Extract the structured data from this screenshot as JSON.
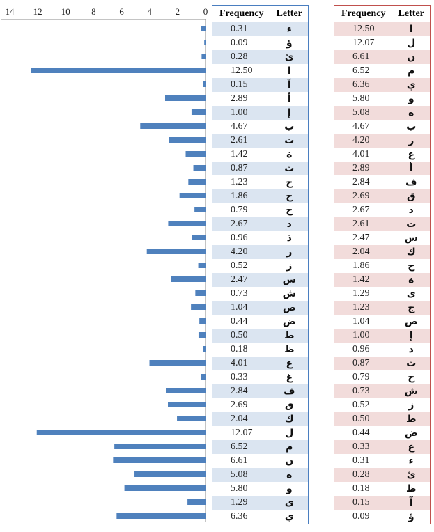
{
  "colors": {
    "bar": "#4f81bd",
    "left_table_border": "#4a7ec0",
    "left_table_alt": "#dbe5f1",
    "right_table_border": "#c0504d",
    "right_table_alt": "#f2dcdb"
  },
  "chart_data": {
    "type": "bar",
    "orientation": "horizontal",
    "x_axis_reversed": true,
    "xlim": [
      0,
      14
    ],
    "x_ticks": [
      "14",
      "12",
      "10",
      "8",
      "6",
      "4",
      "2",
      "0"
    ],
    "grid": false,
    "categories": [
      "ء",
      "ؤ",
      "ئ",
      "ا",
      "آ",
      "أ",
      "إ",
      "ب",
      "ت",
      "ة",
      "ث",
      "ج",
      "ح",
      "خ",
      "د",
      "ذ",
      "ر",
      "ز",
      "س",
      "ش",
      "ص",
      "ض",
      "ط",
      "ظ",
      "ع",
      "غ",
      "ف",
      "ق",
      "ك",
      "ل",
      "م",
      "ن",
      "ه",
      "و",
      "ى",
      "ي"
    ],
    "values": [
      0.31,
      0.09,
      0.28,
      12.5,
      0.15,
      2.89,
      1.0,
      4.67,
      2.61,
      1.42,
      0.87,
      1.23,
      1.86,
      0.79,
      2.67,
      0.96,
      4.2,
      0.52,
      2.47,
      0.73,
      1.04,
      0.44,
      0.5,
      0.18,
      4.01,
      0.33,
      2.84,
      2.69,
      2.04,
      12.07,
      6.52,
      6.61,
      5.08,
      5.8,
      1.29,
      6.36
    ]
  },
  "left_table": {
    "header_frequency": "Frequency",
    "header_letter": "Letter",
    "rows": [
      {
        "freq": "0.31",
        "letter": "ء"
      },
      {
        "freq": "0.09",
        "letter": "ؤ"
      },
      {
        "freq": "0.28",
        "letter": "ئ"
      },
      {
        "freq": "12.50",
        "letter": "ا"
      },
      {
        "freq": "0.15",
        "letter": "آ"
      },
      {
        "freq": "2.89",
        "letter": "أ"
      },
      {
        "freq": "1.00",
        "letter": "إ"
      },
      {
        "freq": "4.67",
        "letter": "ب"
      },
      {
        "freq": "2.61",
        "letter": "ت"
      },
      {
        "freq": "1.42",
        "letter": "ة"
      },
      {
        "freq": "0.87",
        "letter": "ث"
      },
      {
        "freq": "1.23",
        "letter": "ج"
      },
      {
        "freq": "1.86",
        "letter": "ح"
      },
      {
        "freq": "0.79",
        "letter": "خ"
      },
      {
        "freq": "2.67",
        "letter": "د"
      },
      {
        "freq": "0.96",
        "letter": "ذ"
      },
      {
        "freq": "4.20",
        "letter": "ر"
      },
      {
        "freq": "0.52",
        "letter": "ز"
      },
      {
        "freq": "2.47",
        "letter": "س"
      },
      {
        "freq": "0.73",
        "letter": "ش"
      },
      {
        "freq": "1.04",
        "letter": "ص"
      },
      {
        "freq": "0.44",
        "letter": "ض"
      },
      {
        "freq": "0.50",
        "letter": "ط"
      },
      {
        "freq": "0.18",
        "letter": "ظ"
      },
      {
        "freq": "4.01",
        "letter": "ع"
      },
      {
        "freq": "0.33",
        "letter": "غ"
      },
      {
        "freq": "2.84",
        "letter": "ف"
      },
      {
        "freq": "2.69",
        "letter": "ق"
      },
      {
        "freq": "2.04",
        "letter": "ك"
      },
      {
        "freq": "12.07",
        "letter": "ل"
      },
      {
        "freq": "6.52",
        "letter": "م"
      },
      {
        "freq": "6.61",
        "letter": "ن"
      },
      {
        "freq": "5.08",
        "letter": "ه"
      },
      {
        "freq": "5.80",
        "letter": "و"
      },
      {
        "freq": "1.29",
        "letter": "ى"
      },
      {
        "freq": "6.36",
        "letter": "ي"
      }
    ]
  },
  "right_table": {
    "header_frequency": "Frequency",
    "header_letter": "Letter",
    "rows": [
      {
        "freq": "12.50",
        "letter": "ا"
      },
      {
        "freq": "12.07",
        "letter": "ل"
      },
      {
        "freq": "6.61",
        "letter": "ن"
      },
      {
        "freq": "6.52",
        "letter": "م"
      },
      {
        "freq": "6.36",
        "letter": "ي"
      },
      {
        "freq": "5.80",
        "letter": "و"
      },
      {
        "freq": "5.08",
        "letter": "ه"
      },
      {
        "freq": "4.67",
        "letter": "ب"
      },
      {
        "freq": "4.20",
        "letter": "ر"
      },
      {
        "freq": "4.01",
        "letter": "ع"
      },
      {
        "freq": "2.89",
        "letter": "أ"
      },
      {
        "freq": "2.84",
        "letter": "ف"
      },
      {
        "freq": "2.69",
        "letter": "ق"
      },
      {
        "freq": "2.67",
        "letter": "د"
      },
      {
        "freq": "2.61",
        "letter": "ت"
      },
      {
        "freq": "2.47",
        "letter": "س"
      },
      {
        "freq": "2.04",
        "letter": "ك"
      },
      {
        "freq": "1.86",
        "letter": "ح"
      },
      {
        "freq": "1.42",
        "letter": "ة"
      },
      {
        "freq": "1.29",
        "letter": "ى"
      },
      {
        "freq": "1.23",
        "letter": "ج"
      },
      {
        "freq": "1.04",
        "letter": "ص"
      },
      {
        "freq": "1.00",
        "letter": "إ"
      },
      {
        "freq": "0.96",
        "letter": "ذ"
      },
      {
        "freq": "0.87",
        "letter": "ث"
      },
      {
        "freq": "0.79",
        "letter": "خ"
      },
      {
        "freq": "0.73",
        "letter": "ش"
      },
      {
        "freq": "0.52",
        "letter": "ز"
      },
      {
        "freq": "0.50",
        "letter": "ط"
      },
      {
        "freq": "0.44",
        "letter": "ض"
      },
      {
        "freq": "0.33",
        "letter": "غ"
      },
      {
        "freq": "0.31",
        "letter": "ء"
      },
      {
        "freq": "0.28",
        "letter": "ئ"
      },
      {
        "freq": "0.18",
        "letter": "ظ"
      },
      {
        "freq": "0.15",
        "letter": "آ"
      },
      {
        "freq": "0.09",
        "letter": "ؤ"
      }
    ]
  }
}
